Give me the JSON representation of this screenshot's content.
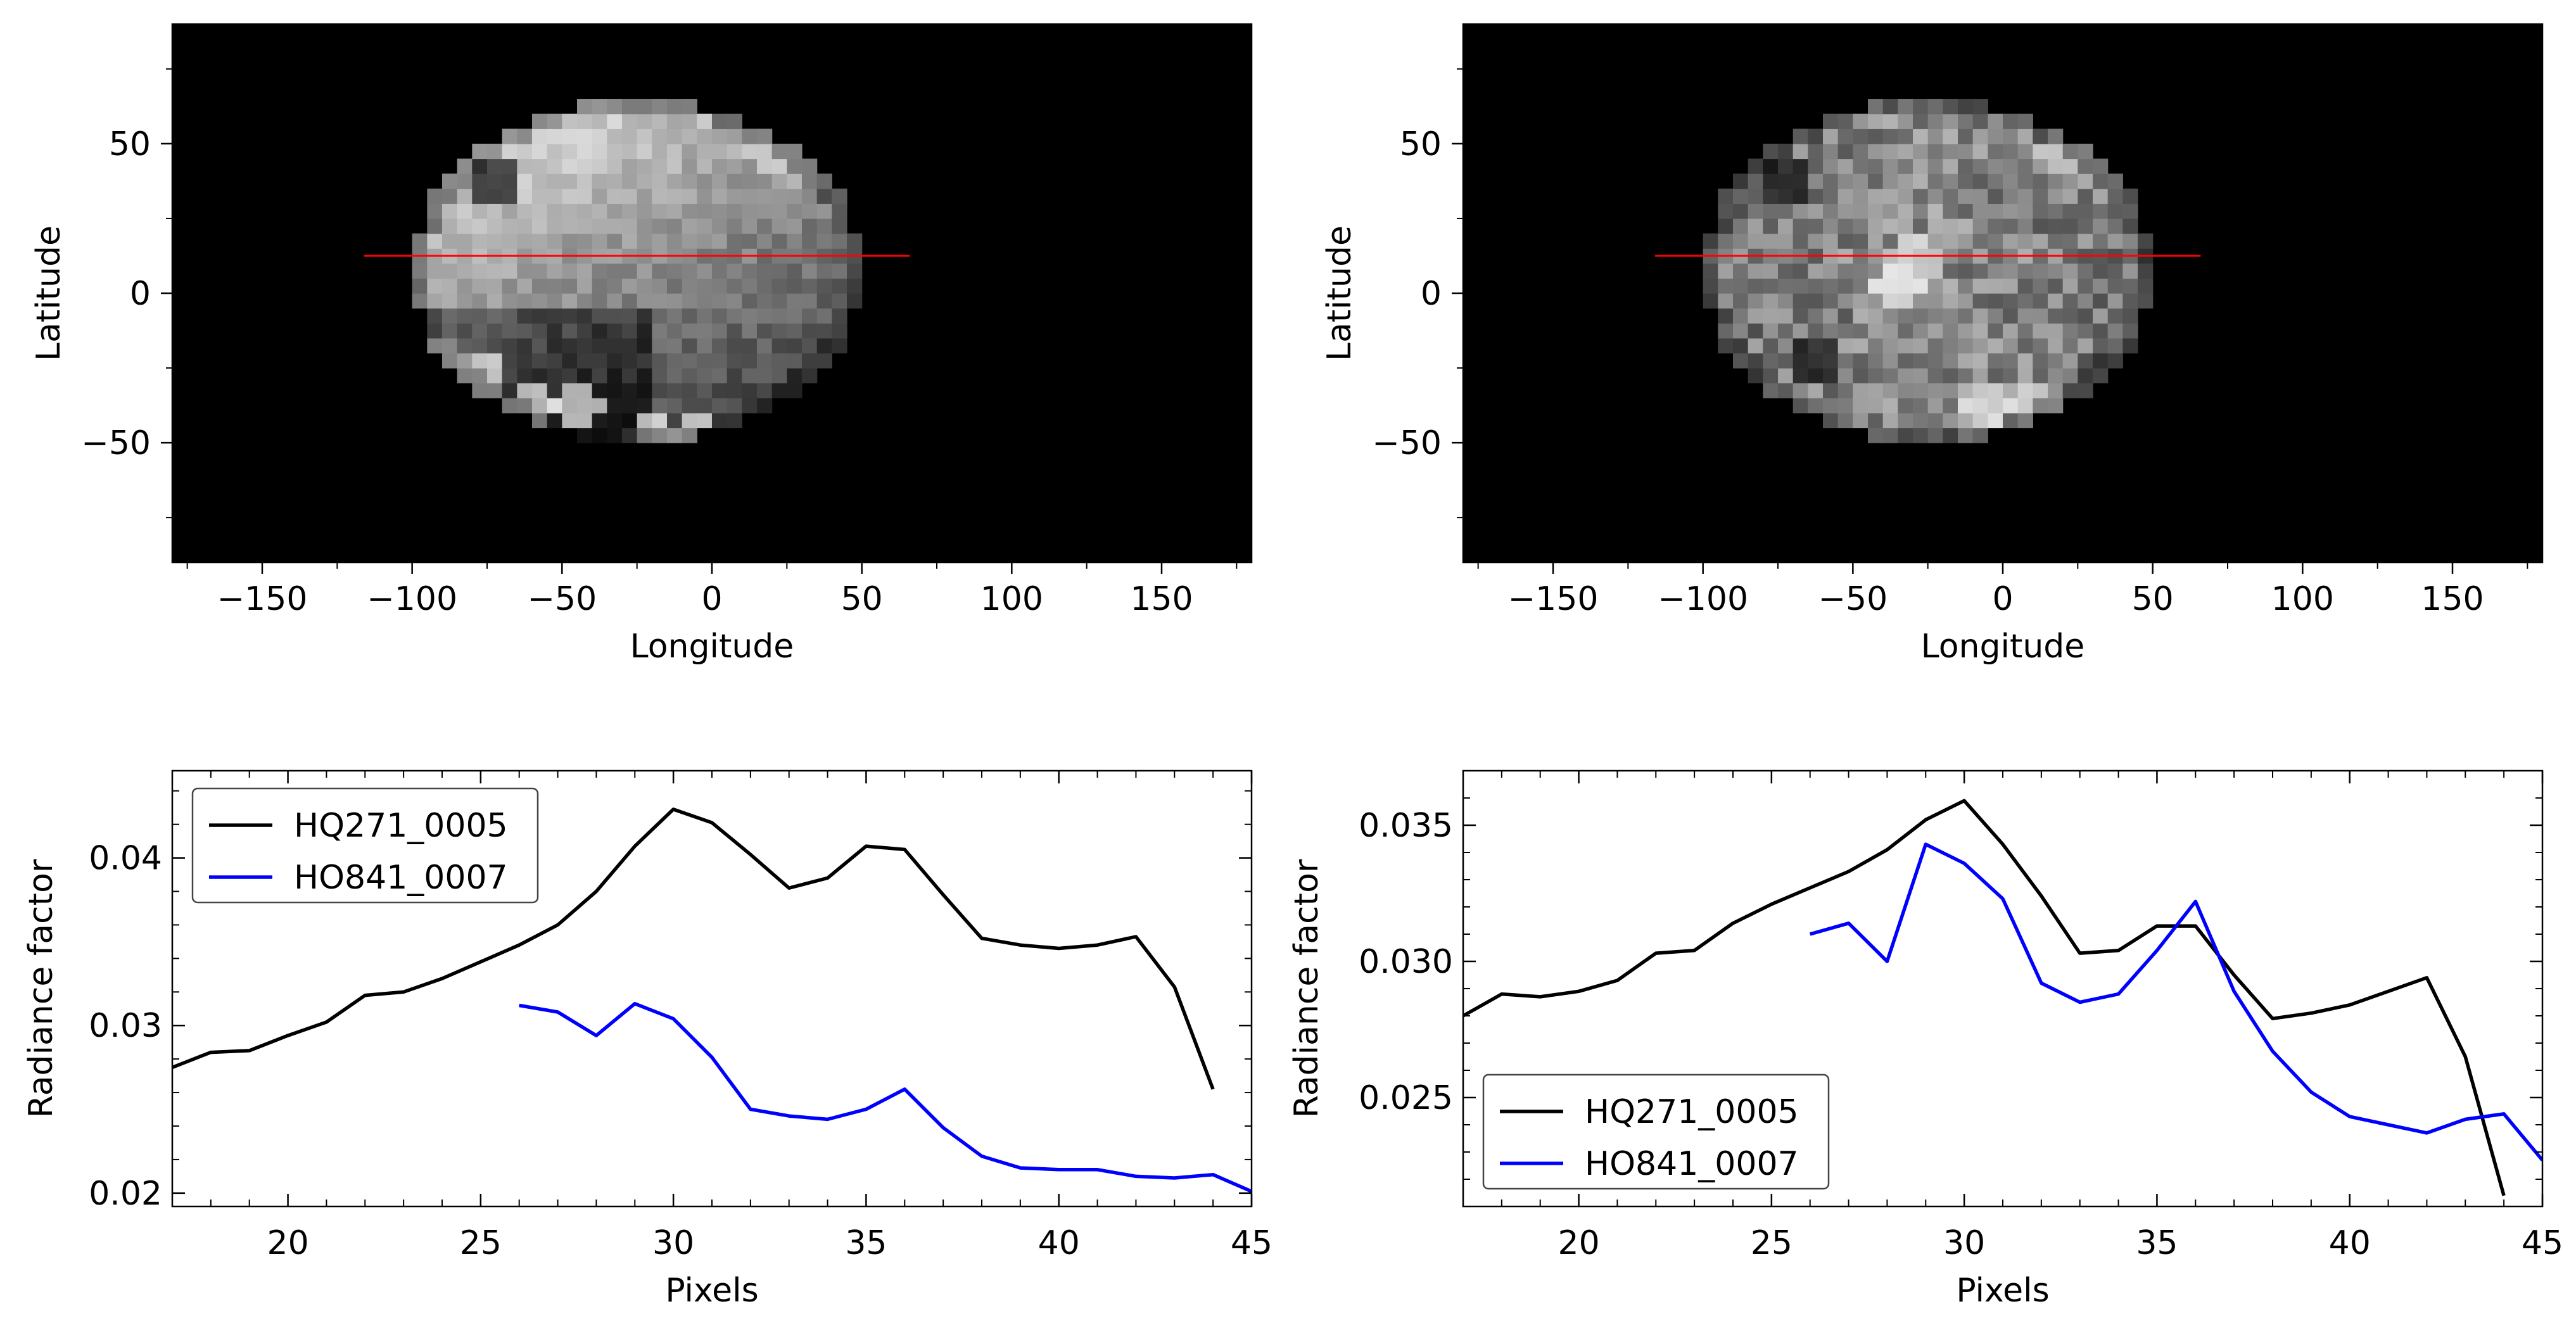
{
  "chart_data": [
    {
      "type": "heatmap",
      "panel": "top-left",
      "xlabel": "Longitude",
      "ylabel": "Latitude",
      "xlim": [
        -180,
        180
      ],
      "ylim": [
        -90,
        90
      ],
      "xticks": [
        -150,
        -100,
        -50,
        0,
        50,
        100,
        150
      ],
      "yticks": [
        -50,
        0,
        50
      ],
      "xtick_labels": [
        "−150",
        "−100",
        "−50",
        "0",
        "50",
        "100",
        "150"
      ],
      "ytick_labels": [
        "−50",
        "0",
        "50"
      ],
      "colormap": "grayscale",
      "profile_line": {
        "color": "#ff0000",
        "lon": [
          -116,
          66
        ],
        "lat": [
          12.5,
          12.5
        ]
      },
      "disk": {
        "lat_top": 65,
        "lat_bottom": -50,
        "lon_left": -100,
        "lon_right": 50
      },
      "features": [
        {
          "lon": -72,
          "lat": 38,
          "value": 0.05
        },
        {
          "lon": -90,
          "lat": -22,
          "value": 1.0
        },
        {
          "lon": -78,
          "lat": -28,
          "value": 1.0
        },
        {
          "lon": -60,
          "lat": -36,
          "value": 0.95
        },
        {
          "lon": -45,
          "lat": -38,
          "value": 0.95
        },
        {
          "lon": -20,
          "lat": -46,
          "value": 1.0
        },
        {
          "lon": -5,
          "lat": -48,
          "value": 0.95
        },
        {
          "lon": -35,
          "lat": -50,
          "value": 0.1
        },
        {
          "lon": 20,
          "lat": 50,
          "value": 0.85
        },
        {
          "lon": 30,
          "lat": 45,
          "value": 0.8
        }
      ]
    },
    {
      "type": "heatmap",
      "panel": "top-right",
      "xlabel": "Longitude",
      "ylabel": "Latitude",
      "xlim": [
        -180,
        180
      ],
      "ylim": [
        -90,
        90
      ],
      "xticks": [
        -150,
        -100,
        -50,
        0,
        50,
        100,
        150
      ],
      "yticks": [
        -50,
        0,
        50
      ],
      "xtick_labels": [
        "−150",
        "−100",
        "−50",
        "0",
        "50",
        "100",
        "150"
      ],
      "ytick_labels": [
        "−50",
        "0",
        "50"
      ],
      "colormap": "grayscale",
      "profile_line": {
        "color": "#ff0000",
        "lon": [
          -116,
          66
        ],
        "lat": [
          12.5,
          12.5
        ]
      },
      "disk": {
        "lat_top": 65,
        "lat_bottom": -50,
        "lon_left": -100,
        "lon_right": 50
      },
      "features": [
        {
          "lon": -72,
          "lat": 38,
          "value": 0.05
        },
        {
          "lon": -63,
          "lat": -22,
          "value": 0.05
        },
        {
          "lon": -35,
          "lat": 2,
          "value": 1.0
        },
        {
          "lon": -30,
          "lat": 10,
          "value": 0.9
        },
        {
          "lon": -5,
          "lat": -38,
          "value": 0.95
        },
        {
          "lon": 10,
          "lat": -36,
          "value": 0.9
        },
        {
          "lon": 20,
          "lat": 48,
          "value": 0.85
        },
        {
          "lon": 35,
          "lat": 40,
          "value": 0.7
        }
      ]
    },
    {
      "type": "line",
      "panel": "bottom-left",
      "xlabel": "Pixels",
      "ylabel": "Radiance factor",
      "xlim": [
        17,
        45
      ],
      "ylim": [
        0.0192,
        0.0452
      ],
      "xticks": [
        20,
        25,
        30,
        35,
        40,
        45
      ],
      "yticks": [
        0.02,
        0.03,
        0.04
      ],
      "ytick_labels": [
        "0.02",
        "0.03",
        "0.04"
      ],
      "legend": "upper-left",
      "series": [
        {
          "name": "HQ271_0005",
          "color": "#000000",
          "x": [
            17,
            18,
            19,
            20,
            21,
            22,
            23,
            24,
            25,
            26,
            27,
            28,
            29,
            30,
            31,
            32,
            33,
            34,
            35,
            36,
            37,
            38,
            39,
            40,
            41,
            42,
            43,
            44
          ],
          "values": [
            0.0275,
            0.0284,
            0.0285,
            0.0294,
            0.0302,
            0.0318,
            0.032,
            0.0328,
            0.0338,
            0.0348,
            0.036,
            0.038,
            0.0407,
            0.0429,
            0.0421,
            0.0402,
            0.0382,
            0.0388,
            0.0407,
            0.0405,
            0.0378,
            0.0352,
            0.0348,
            0.0346,
            0.0348,
            0.0353,
            0.0323,
            0.0262
          ]
        },
        {
          "name": "HO841_0007",
          "color": "#0000ff",
          "x": [
            26,
            27,
            28,
            29,
            30,
            31,
            32,
            33,
            34,
            35,
            36,
            37,
            38,
            39,
            40,
            41,
            42,
            43,
            44,
            45
          ],
          "values": [
            0.0312,
            0.0308,
            0.0294,
            0.0313,
            0.0304,
            0.0281,
            0.025,
            0.0246,
            0.0244,
            0.025,
            0.0262,
            0.0239,
            0.0222,
            0.0215,
            0.0214,
            0.0214,
            0.021,
            0.0209,
            0.0211,
            0.0201
          ]
        }
      ]
    },
    {
      "type": "line",
      "panel": "bottom-right",
      "xlabel": "Pixels",
      "ylabel": "Radiance factor",
      "xlim": [
        17,
        45
      ],
      "ylim": [
        0.021,
        0.037
      ],
      "xticks": [
        20,
        25,
        30,
        35,
        40,
        45
      ],
      "yticks": [
        0.025,
        0.03,
        0.035
      ],
      "ytick_labels": [
        "0.025",
        "0.030",
        "0.035"
      ],
      "legend": "lower-left",
      "series": [
        {
          "name": "HQ271_0005",
          "color": "#000000",
          "x": [
            17,
            18,
            19,
            20,
            21,
            22,
            23,
            24,
            25,
            26,
            27,
            28,
            29,
            30,
            31,
            32,
            33,
            34,
            35,
            36,
            37,
            38,
            39,
            40,
            41,
            42,
            43,
            44
          ],
          "values": [
            0.028,
            0.0288,
            0.0287,
            0.0289,
            0.0293,
            0.0303,
            0.0304,
            0.0314,
            0.0321,
            0.0327,
            0.0333,
            0.0341,
            0.0352,
            0.0359,
            0.0343,
            0.0324,
            0.0303,
            0.0304,
            0.0313,
            0.0313,
            0.0295,
            0.0279,
            0.0281,
            0.0284,
            0.0289,
            0.0294,
            0.0265,
            0.0214
          ]
        },
        {
          "name": "HO841_0007",
          "color": "#0000ff",
          "x": [
            26,
            27,
            28,
            29,
            30,
            31,
            32,
            33,
            34,
            35,
            36,
            37,
            38,
            39,
            40,
            41,
            42,
            43,
            44,
            45
          ],
          "values": [
            0.031,
            0.0314,
            0.03,
            0.0343,
            0.0336,
            0.0323,
            0.0292,
            0.0285,
            0.0288,
            0.0304,
            0.0322,
            0.0289,
            0.0267,
            0.0252,
            0.0243,
            0.024,
            0.0237,
            0.0242,
            0.0244,
            0.0227
          ]
        }
      ]
    }
  ]
}
